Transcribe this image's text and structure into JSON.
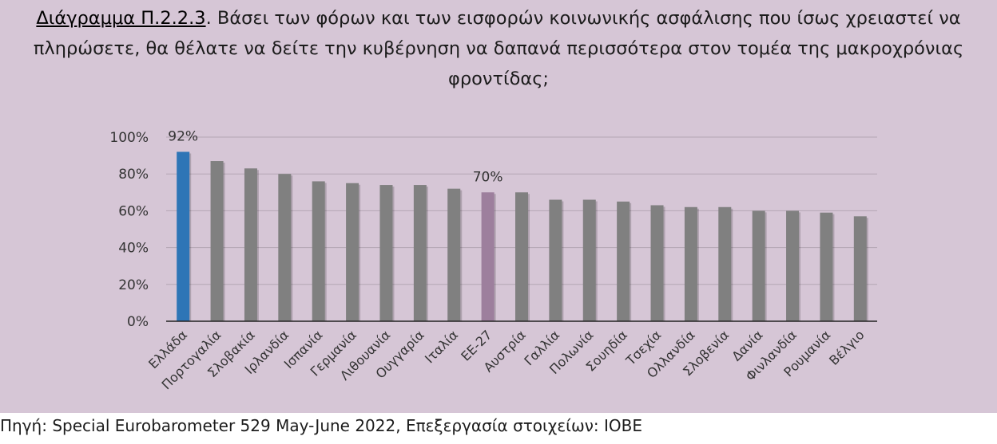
{
  "title_lead": "Διάγραμμα Π.2.2.3",
  "title_rest": ". Βάσει των φόρων και των εισφορών κοινωνικής ασφάλισης που ίσως χρειαστεί να πληρώσετε, θα θέλατε να δείτε την κυβέρνηση να δαπανά περισσότερα στον τομέα της μακροχρόνιας φροντίδας;",
  "source": "Πηγή: Special Eurobarometer 529 May-June 2022, Επεξεργασία στοιχείων: IOBE",
  "colors": {
    "background": "#d6c6d6",
    "default_bar": "#808080",
    "greece_bar": "#2e75b6",
    "eu_bar": "#9d7f9d",
    "gridline": "#b4a6b4",
    "axis": "#222222"
  },
  "chart_data": {
    "type": "bar",
    "categories": [
      "Ελλάδα",
      "Πορτογαλία",
      "Σλοβακία",
      "Ιρλανδία",
      "Ισπανία",
      "Γερμανία",
      "Λιθουανία",
      "Ουγγαρία",
      "Ιταλία",
      "ΕΕ-27",
      "Αυστρία",
      "Γαλλία",
      "Πολωνία",
      "Σουηδία",
      "Τσεχία",
      "Ολλανδία",
      "Σλοβενία",
      "Δανία",
      "Φινλανδία",
      "Ρουμανία",
      "Βέλγιο"
    ],
    "values": [
      92,
      87,
      83,
      80,
      76,
      75,
      74,
      74,
      72,
      70,
      70,
      66,
      66,
      65,
      63,
      62,
      62,
      60,
      60,
      59,
      57
    ],
    "highlighted": {
      "Ελλάδα": "greece_bar",
      "ΕΕ-27": "eu_bar"
    },
    "data_labels": [
      {
        "category": "Ελλάδα",
        "text": "92%"
      },
      {
        "category": "ΕΕ-27",
        "text": "70%"
      }
    ],
    "yticks": [
      0,
      20,
      40,
      60,
      80,
      100
    ],
    "ytick_labels": [
      "0%",
      "20%",
      "40%",
      "60%",
      "80%",
      "100%"
    ],
    "ylim": [
      0,
      100
    ],
    "grid": true,
    "legend": "none"
  }
}
